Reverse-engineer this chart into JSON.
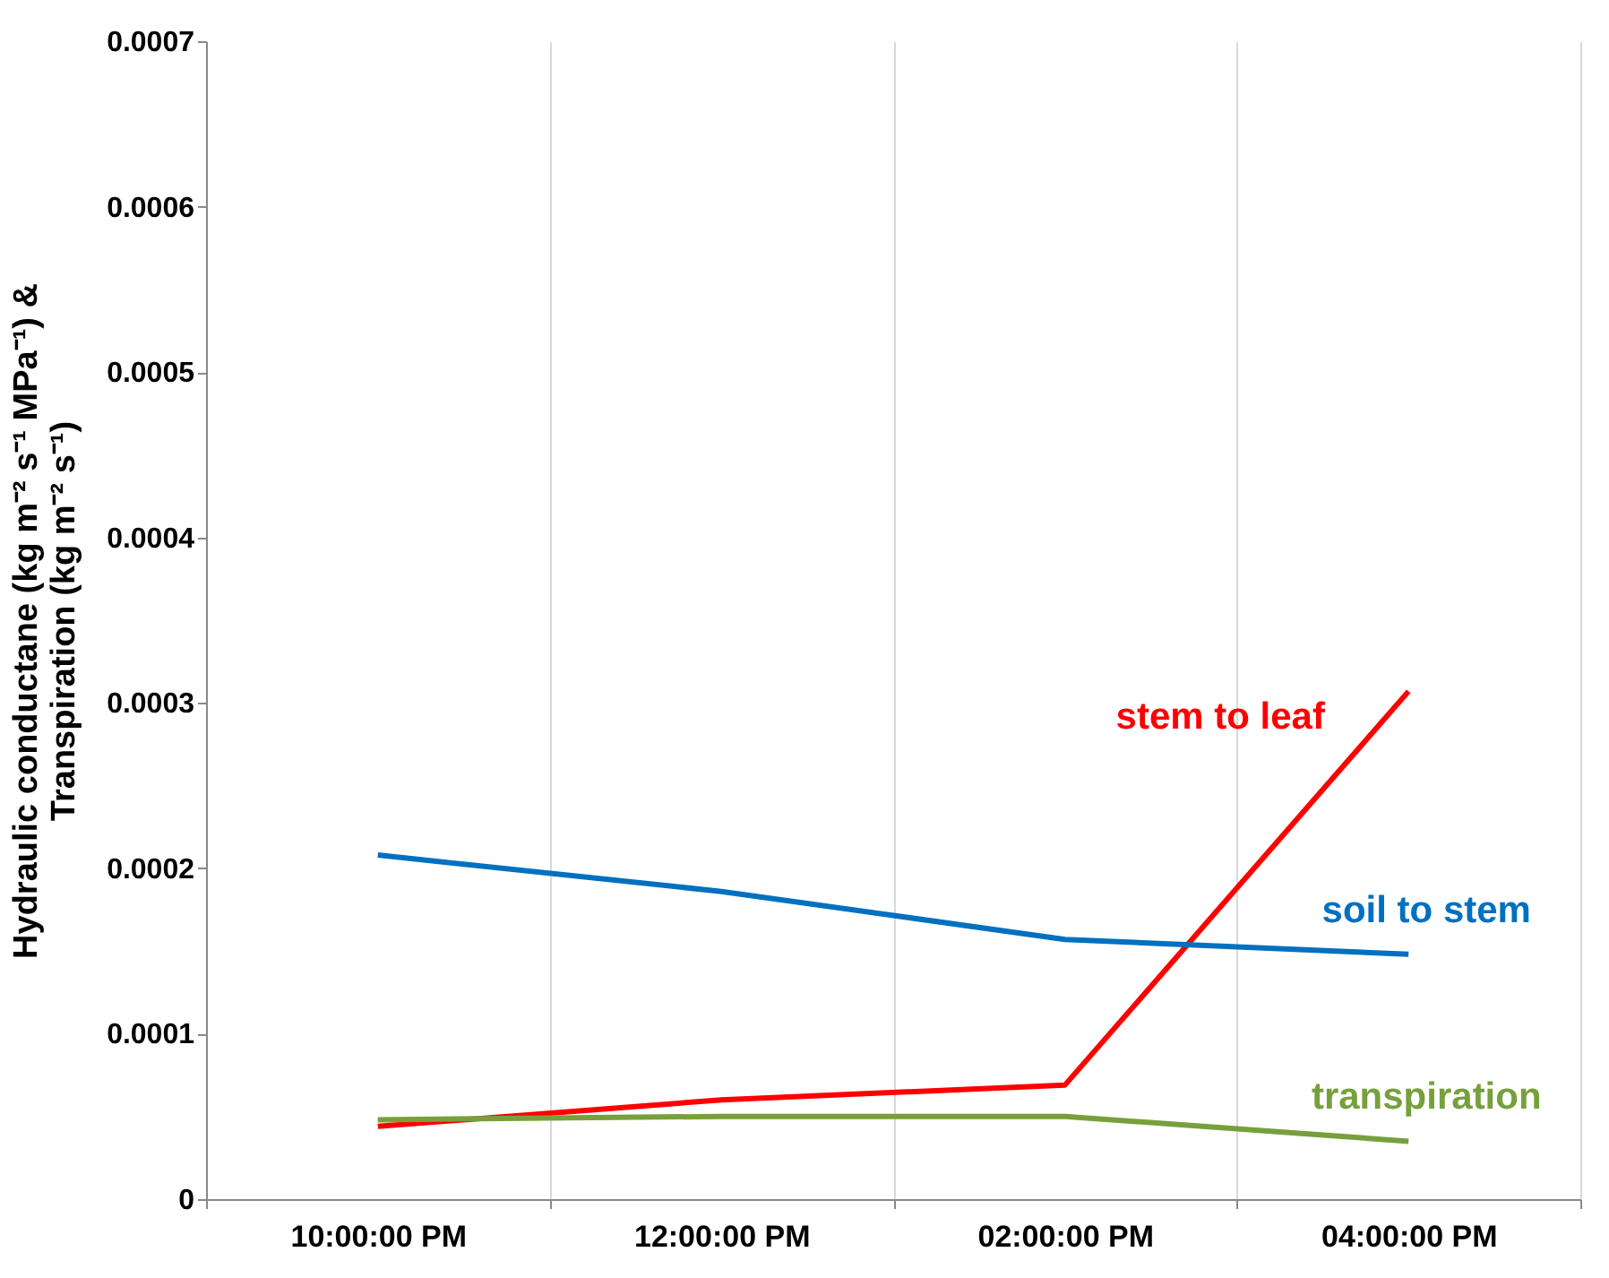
{
  "chart_data": {
    "type": "line",
    "ylabel": "Hydraulic conductane (kg m⁻² s⁻¹ MPa⁻¹) &\nTranspiration  (kg m⁻² s⁻¹)",
    "categories": [
      "10:00:00 PM",
      "12:00:00 PM",
      "02:00:00 PM",
      "04:00:00 PM"
    ],
    "series": [
      {
        "name": "stem to leaf",
        "color": "#ff0000",
        "values": [
          4.4e-05,
          6e-05,
          6.9e-05,
          0.000307
        ]
      },
      {
        "name": "soil to stem",
        "color": "#0070c0",
        "values": [
          0.000208,
          0.000186,
          0.000157,
          0.000148
        ]
      },
      {
        "name": "transpiration",
        "color": "#77a03c",
        "values": [
          4.8e-05,
          5e-05,
          5e-05,
          3.5e-05
        ]
      }
    ],
    "ylim": [
      0,
      0.0007
    ],
    "yticks": [
      0,
      0.0001,
      0.0002,
      0.0003,
      0.0004,
      0.0005,
      0.0006,
      0.0007
    ],
    "grid": "x",
    "legend": false,
    "marker": "none",
    "line_style": "solid"
  }
}
